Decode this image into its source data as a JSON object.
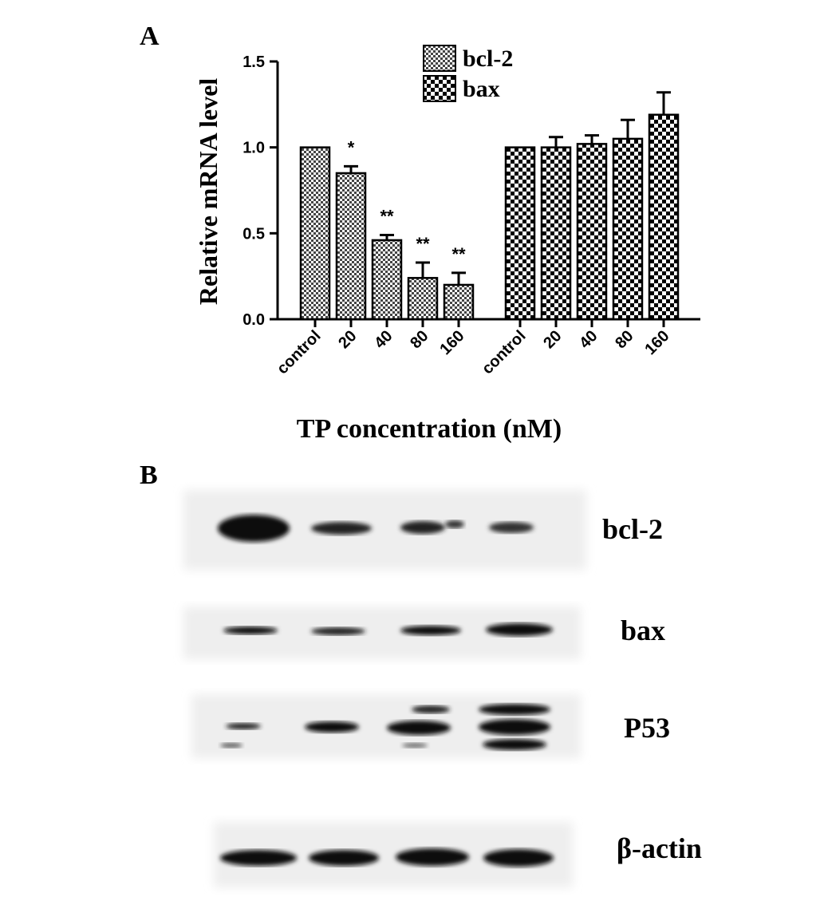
{
  "panel_labels": [
    "A",
    "B"
  ],
  "chart_data": {
    "type": "bar",
    "ylabel": "Relative mRNA level",
    "xlabel": "TP concentration (nM)",
    "categories": [
      "control",
      "20",
      "40",
      "80",
      "160",
      "control",
      "20",
      "40",
      "80",
      "160"
    ],
    "series": [
      {
        "name": "bcl-2",
        "color": "#000000",
        "pattern": "fine-check",
        "values": [
          1.0,
          0.85,
          0.46,
          0.24,
          0.2,
          null,
          null,
          null,
          null,
          null
        ],
        "errors": [
          0,
          0.04,
          0.03,
          0.09,
          0.07,
          null,
          null,
          null,
          null,
          null
        ],
        "annotations": [
          null,
          "*",
          "**",
          "**",
          "**",
          null,
          null,
          null,
          null,
          null
        ]
      },
      {
        "name": "bax",
        "color": "#000000",
        "pattern": "coarse-check",
        "values": [
          null,
          null,
          null,
          null,
          null,
          1.0,
          1.0,
          1.02,
          1.05,
          1.19
        ],
        "errors": [
          null,
          null,
          null,
          null,
          null,
          0,
          0.06,
          0.05,
          0.11,
          0.13
        ]
      }
    ],
    "ylim": [
      0,
      1.5
    ],
    "yticks": [
      {
        "value": 0,
        "label": "0.0"
      },
      {
        "value": 0.5,
        "label": "0.5"
      },
      {
        "value": 1,
        "label": "1.0"
      },
      {
        "value": 1.5,
        "label": "1.5"
      }
    ],
    "legend": "top"
  },
  "blot": {
    "rows": [
      {
        "label": "bcl-2"
      },
      {
        "label": "bax"
      },
      {
        "label": "P53"
      },
      {
        "label": "β-actin"
      }
    ]
  }
}
